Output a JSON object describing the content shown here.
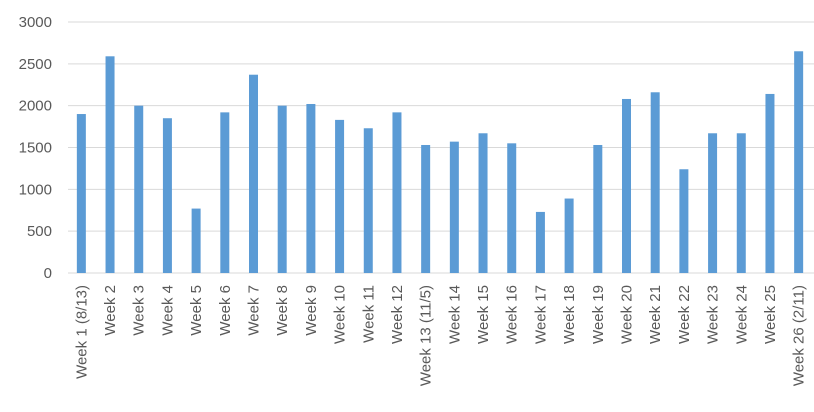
{
  "chart_data": {
    "type": "bar",
    "title": "",
    "xlabel": "",
    "ylabel": "",
    "ylim": [
      0,
      3000
    ],
    "yticks": [
      0,
      500,
      1000,
      1500,
      2000,
      2500,
      3000
    ],
    "grid": true,
    "legend": "none",
    "bar_color": "#5b9bd5",
    "categories": [
      "Week 1 (8/13)",
      "Week 2",
      "Week 3",
      "Week 4",
      "Week 5",
      "Week 6",
      "Week 7",
      "Week 8",
      "Week 9",
      "Week 10",
      "Week 11",
      "Week 12",
      "Week 13 (11/5)",
      "Week 14",
      "Week 15",
      "Week 16",
      "Week 17",
      "Week 18",
      "Week 19",
      "Week 20",
      "Week 21",
      "Week 22",
      "Week 23",
      "Week 24",
      "Week 25",
      "Week 26 (2/11)"
    ],
    "values": [
      1900,
      2590,
      2000,
      1850,
      770,
      1920,
      2370,
      2000,
      2020,
      1830,
      1730,
      1920,
      1530,
      1570,
      1670,
      1550,
      730,
      890,
      1530,
      2080,
      2160,
      1240,
      1670,
      1670,
      2140,
      2650
    ]
  }
}
